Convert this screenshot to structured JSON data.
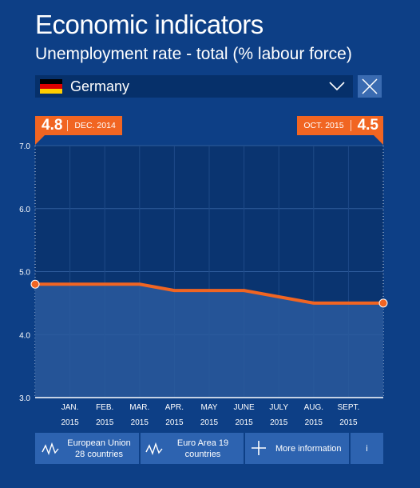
{
  "header": {
    "title": "Economic indicators",
    "subtitle": "Unemployment rate - total (% labour force)"
  },
  "country_selector": {
    "selected": "Germany",
    "flag_icon": "germany-flag-icon"
  },
  "badges": {
    "left": {
      "value": "4.8",
      "date": "DEC. 2014"
    },
    "right": {
      "value": "4.5",
      "date": "OCT. 2015"
    }
  },
  "colors": {
    "background": "#0d3f86",
    "plot_area": "#0a3470",
    "line": "#f16522",
    "button": "#2d63b0"
  },
  "buttons": {
    "eu": {
      "line1": "European Union",
      "line2": "28 countries"
    },
    "ea": {
      "line1": "Euro Area 19",
      "line2": "countries"
    },
    "more": "More information",
    "info": "i"
  },
  "chart_data": {
    "type": "area",
    "title": "Unemployment rate - total (% labour force)",
    "x": [
      "DEC. 2014",
      "JAN. 2015",
      "FEB. 2015",
      "MAR. 2015",
      "APR. 2015",
      "MAY 2015",
      "JUNE 2015",
      "JULY 2015",
      "AUG. 2015",
      "SEPT. 2015",
      "OCT. 2015"
    ],
    "x_tick_labels": [
      [
        "JAN.",
        "2015"
      ],
      [
        "FEB.",
        "2015"
      ],
      [
        "MAR.",
        "2015"
      ],
      [
        "APR.",
        "2015"
      ],
      [
        "MAY",
        "2015"
      ],
      [
        "JUNE",
        "2015"
      ],
      [
        "JULY",
        "2015"
      ],
      [
        "AUG.",
        "2015"
      ],
      [
        "SEPT.",
        "2015"
      ]
    ],
    "series": [
      {
        "name": "Germany",
        "values": [
          4.8,
          4.8,
          4.8,
          4.8,
          4.7,
          4.7,
          4.7,
          4.6,
          4.5,
          4.5,
          4.5
        ]
      }
    ],
    "y_ticks": [
      "3.0",
      "4.0",
      "5.0",
      "6.0",
      "7.0"
    ],
    "ylim": [
      3.0,
      7.0
    ],
    "grid": true
  }
}
